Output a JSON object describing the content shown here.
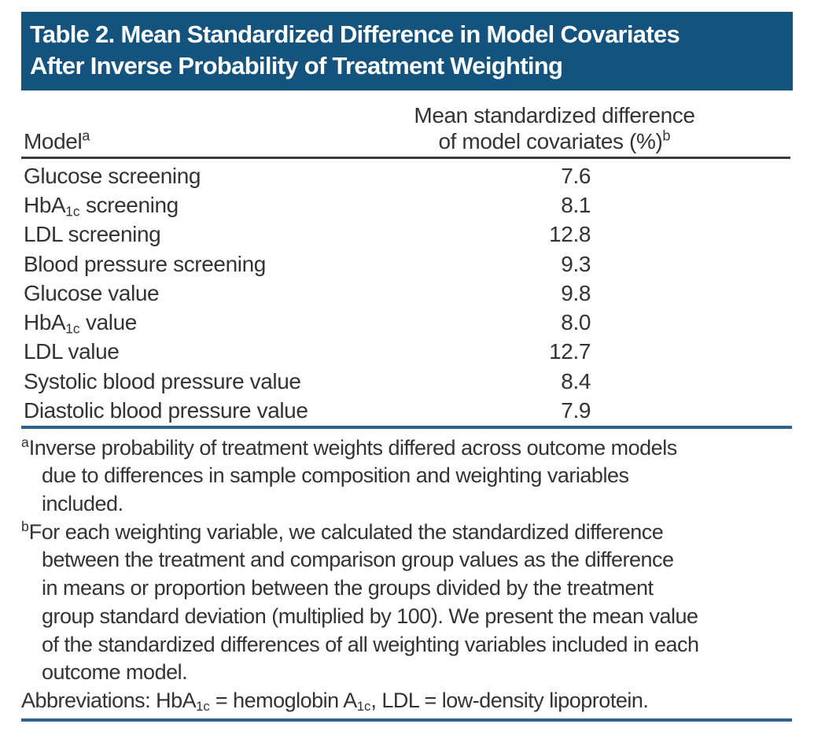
{
  "table_title": {
    "line1": "Table 2. Mean Standardized Difference in Model Covariates",
    "line2": "After Inverse Probability of Treatment Weighting"
  },
  "columns": {
    "model": {
      "label": "Model",
      "sup": "a"
    },
    "value": {
      "line1": "Mean standardized difference",
      "line2": "of model covariates (%)",
      "sup": "b"
    }
  },
  "rows": [
    {
      "pre": "Glucose screening",
      "sub": "",
      "post": "",
      "value": "7.6"
    },
    {
      "pre": "HbA",
      "sub": "1c",
      "post": " screening",
      "value": "8.1"
    },
    {
      "pre": "LDL screening",
      "sub": "",
      "post": "",
      "value": "12.8"
    },
    {
      "pre": "Blood pressure screening",
      "sub": "",
      "post": "",
      "value": "9.3"
    },
    {
      "pre": "Glucose value",
      "sub": "",
      "post": "",
      "value": "9.8"
    },
    {
      "pre": "HbA",
      "sub": "1c",
      "post": " value",
      "value": "8.0"
    },
    {
      "pre": "LDL value",
      "sub": "",
      "post": "",
      "value": "12.7"
    },
    {
      "pre": "Systolic blood pressure value",
      "sub": "",
      "post": "",
      "value": "8.4"
    },
    {
      "pre": "Diastolic blood pressure value",
      "sub": "",
      "post": "",
      "value": "7.9"
    }
  ],
  "footnotes": {
    "a": {
      "marker": "a",
      "lines": [
        "Inverse probability of treatment weights differed across outcome models",
        "due to differences in sample composition and weighting variables",
        "included."
      ]
    },
    "b": {
      "marker": "b",
      "lines": [
        "For each weighting variable, we calculated the standardized difference",
        "between the treatment and comparison group values as the difference",
        "in means or proportion between the groups divided by the treatment",
        "group standard deviation (multiplied by 100). We present the mean value",
        "of the standardized differences of all weighting variables included in each",
        "outcome model."
      ]
    },
    "abbreviations": {
      "pre": "Abbreviations: HbA",
      "sub1": "1c",
      "mid": " = hemoglobin A",
      "sub2": "1c",
      "post": ", LDL = low-density lipoprotein."
    }
  },
  "colors": {
    "header_bg": "#15537f",
    "rule_blue": "#2b628f",
    "rule_dark": "#3c3c3c",
    "text": "#333333",
    "title_text": "#ffffff"
  },
  "chart_data": {
    "type": "table",
    "title": "Table 2. Mean Standardized Difference in Model Covariates After Inverse Probability of Treatment Weighting",
    "categories": [
      "Glucose screening",
      "HbA1c screening",
      "LDL screening",
      "Blood pressure screening",
      "Glucose value",
      "HbA1c value",
      "LDL value",
      "Systolic blood pressure value",
      "Diastolic blood pressure value"
    ],
    "values": [
      7.6,
      8.1,
      12.8,
      9.3,
      9.8,
      8.0,
      12.7,
      8.4,
      7.9
    ],
    "value_label": "Mean standardized difference of model covariates (%)"
  }
}
